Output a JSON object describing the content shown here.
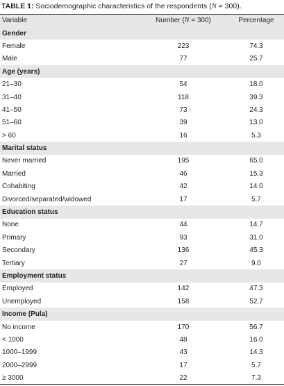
{
  "title": {
    "label": "TABLE 1:",
    "before": " Sociodemographic characteristics of the respondents (",
    "n": "N",
    "after": " = 300)."
  },
  "columns": {
    "variable": "Variable",
    "number_before": "Number (",
    "number_n": "N",
    "number_after": " = 300)",
    "percentage": "Percentage"
  },
  "sections": [
    {
      "title": "Gender",
      "rows": [
        [
          "Female",
          "223",
          "74.3"
        ],
        [
          "Male",
          "77",
          "25.7"
        ]
      ]
    },
    {
      "title": "Age (years)",
      "rows": [
        [
          "21–30",
          "54",
          "18.0"
        ],
        [
          "31–40",
          "118",
          "39.3"
        ],
        [
          "41–50",
          "73",
          "24.3"
        ],
        [
          "51–60",
          "39",
          "13.0"
        ],
        [
          "> 60",
          "16",
          "5.3"
        ]
      ]
    },
    {
      "title": "Marital status",
      "rows": [
        [
          "Never married",
          "195",
          "65.0"
        ],
        [
          "Married",
          "46",
          "15.3"
        ],
        [
          "Cohabiting",
          "42",
          "14.0"
        ],
        [
          "Divorced/separated/widowed",
          "17",
          "5.7"
        ]
      ]
    },
    {
      "title": "Education status",
      "rows": [
        [
          "None",
          "44",
          "14.7"
        ],
        [
          "Primary",
          "93",
          "31.0"
        ],
        [
          "Secondary",
          "136",
          "45.3"
        ],
        [
          "Tertiary",
          "27",
          "9.0"
        ]
      ]
    },
    {
      "title": "Employment status",
      "rows": [
        [
          "Employed",
          "142",
          "47.3"
        ],
        [
          "Unemployed",
          "158",
          "52.7"
        ]
      ]
    },
    {
      "title": "Income (Pula)",
      "rows": [
        [
          "No income",
          "170",
          "56.7"
        ],
        [
          "< 1000",
          "48",
          "16.0"
        ],
        [
          "1000–1999",
          "43",
          "14.3"
        ],
        [
          "2000–2999",
          "17",
          "5.7"
        ],
        [
          "≥ 3000",
          "22",
          "7.3"
        ]
      ]
    }
  ]
}
